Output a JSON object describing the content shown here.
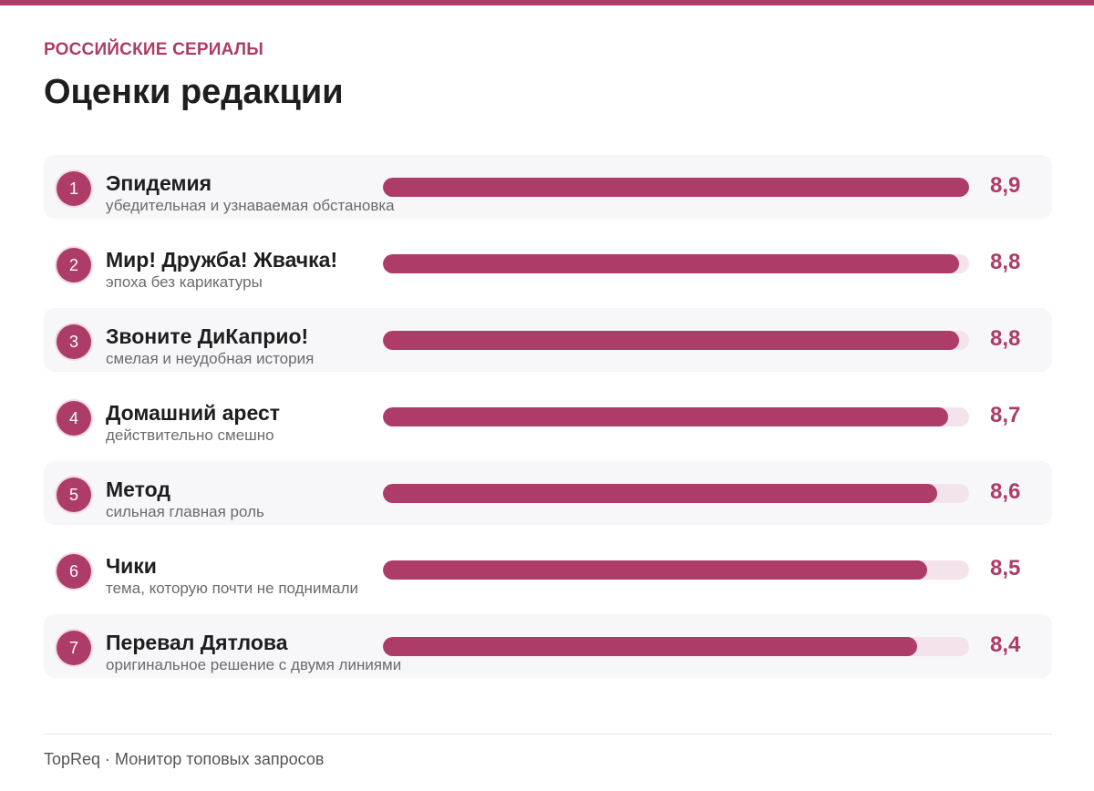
{
  "header": {
    "kicker": "РОССИЙСКИЕ СЕРИАЛЫ",
    "title": "Оценки редакции"
  },
  "colors": {
    "accent": "#ad3c68",
    "track": "#f3e3ea",
    "row_shade": "#f7f6f9"
  },
  "chart_data": {
    "type": "bar",
    "orientation": "horizontal",
    "title": "Оценки редакции",
    "xlim": [
      0,
      8.9
    ],
    "items": [
      {
        "rank": "1",
        "name": "Эпидемия",
        "note": "убедительная и узнаваемая обстановка",
        "value": 8.9,
        "label": "8,9"
      },
      {
        "rank": "2",
        "name": "Мир! Дружба! Жвачка!",
        "note": "эпоха без карикатуры",
        "value": 8.8,
        "label": "8,8"
      },
      {
        "rank": "3",
        "name": "Звоните ДиКаприо!",
        "note": "смелая и неудобная история",
        "value": 8.8,
        "label": "8,8"
      },
      {
        "rank": "4",
        "name": "Домашний арест",
        "note": "действительно смешно",
        "value": 8.7,
        "label": "8,7"
      },
      {
        "rank": "5",
        "name": "Метод",
        "note": "сильная главная роль",
        "value": 8.6,
        "label": "8,6"
      },
      {
        "rank": "6",
        "name": "Чики",
        "note": "тема, которую почти не поднимали",
        "value": 8.5,
        "label": "8,5"
      },
      {
        "rank": "7",
        "name": "Перевал Дятлова",
        "note": "оригинальное решение с двумя линиями",
        "value": 8.4,
        "label": "8,4"
      }
    ]
  },
  "footer": {
    "text": "TopReq · Монитор топовых запросов"
  }
}
